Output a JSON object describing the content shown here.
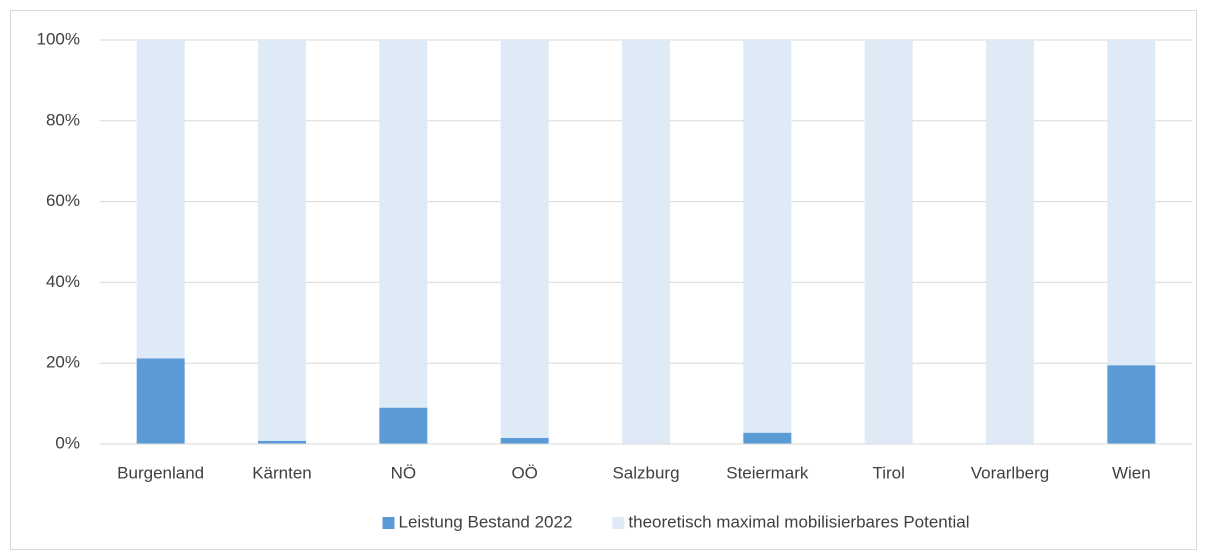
{
  "chart_data": {
    "type": "stacked_bar",
    "categories": [
      "Burgenland",
      "Kärnten",
      "NÖ",
      "OÖ",
      "Salzburg",
      "Steiermark",
      "Tirol",
      "Vorarlberg",
      "Wien"
    ],
    "series": [
      {
        "name": "Leistung Bestand 2022",
        "color": "#5b9bd5",
        "values": [
          21.2,
          0.8,
          9,
          1.5,
          0,
          2.8,
          0,
          0,
          19.5
        ]
      },
      {
        "name": "theoretisch maximal mobilisierbares Potential",
        "color": "#deebf7",
        "values": [
          78.8,
          99.2,
          91,
          98.5,
          100,
          97.2,
          100,
          100,
          80.5
        ]
      }
    ],
    "ylim": [
      0,
      100
    ],
    "yticks": [
      {
        "value": 0,
        "label": "0%"
      },
      {
        "value": 20,
        "label": "20%"
      },
      {
        "value": 40,
        "label": "40%"
      },
      {
        "value": 60,
        "label": "60%"
      },
      {
        "value": 80,
        "label": "80%"
      },
      {
        "value": 100,
        "label": "100%"
      }
    ],
    "grid": true,
    "legend": "bottom"
  }
}
